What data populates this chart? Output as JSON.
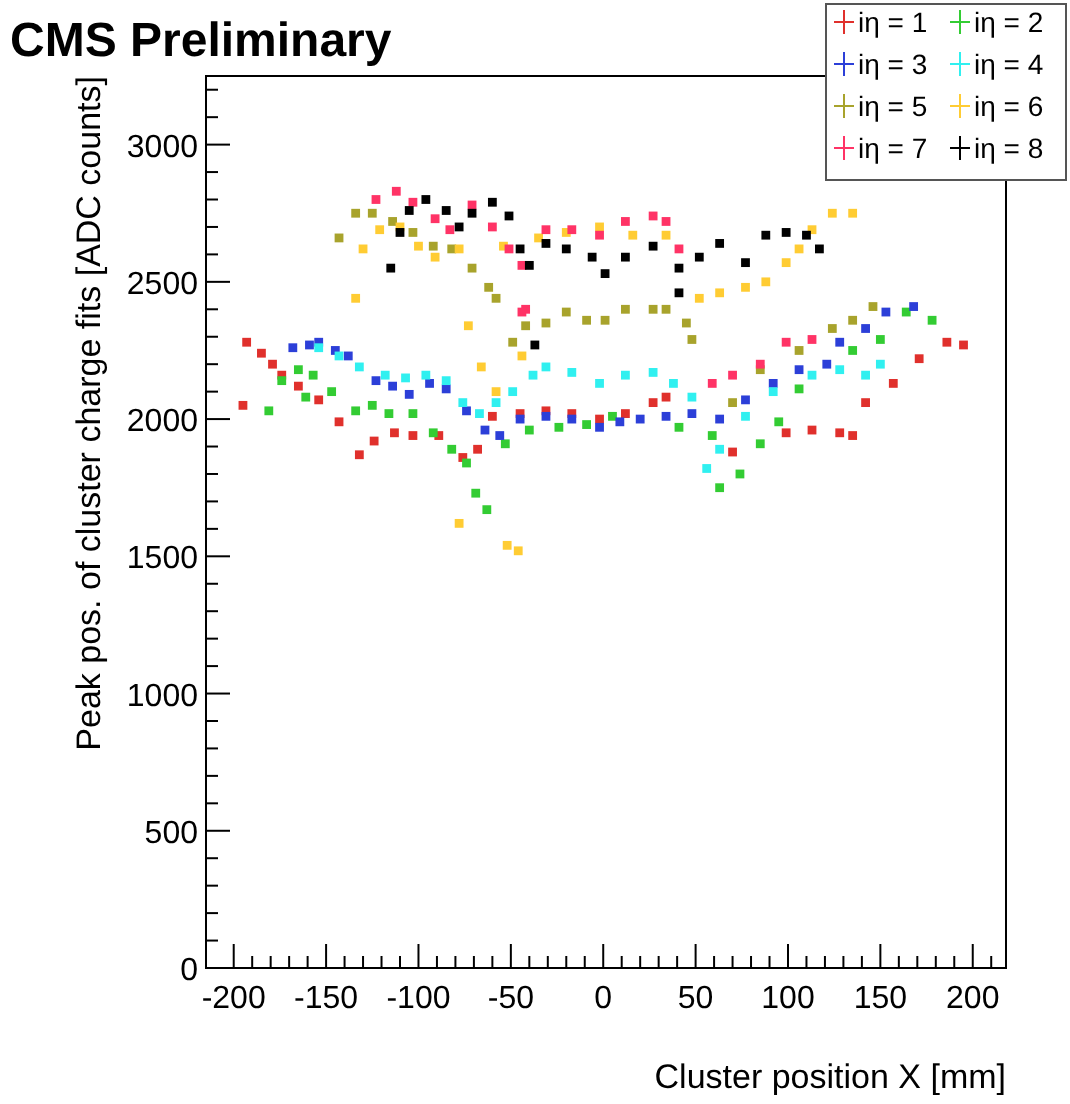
{
  "chart_data": {
    "type": "scatter",
    "title": "CMS Preliminary",
    "xlabel": "Cluster position X [mm]",
    "ylabel": "Peak pos. of cluster charge fits [ADC counts]",
    "xlim": [
      -215,
      218
    ],
    "ylim": [
      0,
      3250
    ],
    "marker": "square",
    "legend": "top right",
    "grid": false,
    "xticks": [
      -200,
      {
        "value": -190,
        "label": null
      },
      {
        "value": -180,
        "label": null
      },
      {
        "value": -170,
        "label": null
      },
      {
        "value": -160,
        "label": null
      },
      -150,
      {
        "value": -140,
        "label": null
      },
      {
        "value": -130,
        "label": null
      },
      {
        "value": -120,
        "label": null
      },
      {
        "value": -110,
        "label": null
      },
      -100,
      {
        "value": -90,
        "label": null
      },
      {
        "value": -80,
        "label": null
      },
      {
        "value": -70,
        "label": null
      },
      {
        "value": -60,
        "label": null
      },
      -50,
      {
        "value": -40,
        "label": null
      },
      {
        "value": -30,
        "label": null
      },
      {
        "value": -20,
        "label": null
      },
      {
        "value": -10,
        "label": null
      },
      0,
      {
        "value": 10,
        "label": null
      },
      {
        "value": 20,
        "label": null
      },
      {
        "value": 30,
        "label": null
      },
      {
        "value": 40,
        "label": null
      },
      50,
      {
        "value": 60,
        "label": null
      },
      {
        "value": 70,
        "label": null
      },
      {
        "value": 80,
        "label": null
      },
      {
        "value": 90,
        "label": null
      },
      100,
      {
        "value": 110,
        "label": null
      },
      {
        "value": 120,
        "label": null
      },
      {
        "value": 130,
        "label": null
      },
      {
        "value": 140,
        "label": null
      },
      150,
      {
        "value": 160,
        "label": null
      },
      {
        "value": 170,
        "label": null
      },
      {
        "value": 180,
        "label": null
      },
      {
        "value": 190,
        "label": null
      },
      200,
      {
        "value": 210,
        "label": null
      }
    ],
    "yticks": [
      0,
      {
        "value": 100,
        "label": null
      },
      {
        "value": 200,
        "label": null
      },
      {
        "value": 300,
        "label": null
      },
      {
        "value": 400,
        "label": null
      },
      500,
      {
        "value": 600,
        "label": null
      },
      {
        "value": 700,
        "label": null
      },
      {
        "value": 800,
        "label": null
      },
      {
        "value": 900,
        "label": null
      },
      1000,
      {
        "value": 1100,
        "label": null
      },
      {
        "value": 1200,
        "label": null
      },
      {
        "value": 1300,
        "label": null
      },
      {
        "value": 1400,
        "label": null
      },
      1500,
      {
        "value": 1600,
        "label": null
      },
      {
        "value": 1700,
        "label": null
      },
      {
        "value": 1800,
        "label": null
      },
      {
        "value": 1900,
        "label": null
      },
      2000,
      {
        "value": 2100,
        "label": null
      },
      {
        "value": 2200,
        "label": null
      },
      {
        "value": 2300,
        "label": null
      },
      {
        "value": 2400,
        "label": null
      },
      2500,
      {
        "value": 2600,
        "label": null
      },
      {
        "value": 2700,
        "label": null
      },
      {
        "value": 2800,
        "label": null
      },
      {
        "value": 2900,
        "label": null
      },
      3000,
      {
        "value": 3100,
        "label": null
      },
      {
        "value": 3200,
        "label": null
      }
    ],
    "series": [
      {
        "name": "iη = 1",
        "color": "#e0302c",
        "x": [
          -195,
          -193,
          -185,
          -179,
          -174,
          -165,
          -154,
          -143,
          -132,
          -124,
          -113,
          -103,
          -89,
          -76,
          -68,
          -60,
          -45,
          -31,
          -17,
          -2,
          12,
          27,
          34,
          70,
          99,
          113,
          128,
          135,
          142,
          157,
          171,
          186,
          195
        ],
        "values": [
          2050,
          2280,
          2240,
          2200,
          2160,
          2120,
          2070,
          1990,
          1870,
          1920,
          1950,
          1940,
          1940,
          1860,
          1890,
          2010,
          2020,
          2030,
          2020,
          2000,
          2020,
          2060,
          2080,
          1880,
          1950,
          1960,
          1950,
          1940,
          2060,
          2130,
          2220,
          2280,
          2270
        ]
      },
      {
        "name": "iη = 2",
        "color": "#33cc33",
        "x": [
          -181,
          -174,
          -165,
          -157,
          -161,
          -147,
          -134,
          -125,
          -116,
          -103,
          -92,
          -82,
          -74,
          -69,
          -63,
          -53,
          -40,
          -24,
          -9,
          5,
          41,
          59,
          63,
          74,
          85,
          95,
          106,
          135,
          150,
          164,
          178
        ],
        "values": [
          2030,
          2140,
          2180,
          2160,
          2080,
          2100,
          2030,
          2050,
          2020,
          2020,
          1950,
          1890,
          1840,
          1730,
          1670,
          1910,
          1960,
          1970,
          1980,
          2010,
          1970,
          1940,
          1750,
          1800,
          1910,
          1990,
          2110,
          2250,
          2290,
          2390,
          2360
        ]
      },
      {
        "name": "iη = 3",
        "color": "#2c3fd8",
        "x": [
          -168,
          -159,
          -154,
          -145,
          -138,
          -123,
          -114,
          -105,
          -94,
          -85,
          -74,
          -64,
          -56,
          -45,
          -31,
          -17,
          -2,
          9,
          20,
          34,
          48,
          63,
          77,
          92,
          106,
          121,
          128,
          142,
          153,
          168
        ],
        "values": [
          2260,
          2270,
          2280,
          2250,
          2230,
          2140,
          2120,
          2090,
          2130,
          2110,
          2030,
          1960,
          1940,
          2000,
          2010,
          2000,
          1970,
          1990,
          2000,
          2010,
          2020,
          2000,
          2070,
          2130,
          2180,
          2200,
          2280,
          2330,
          2390,
          2410
        ]
      },
      {
        "name": "iη = 4",
        "color": "#30f0f0",
        "x": [
          -154,
          -143,
          -132,
          -118,
          -107,
          -96,
          -85,
          -76,
          -67,
          -58,
          -49,
          -38,
          -31,
          -17,
          -2,
          12,
          27,
          38,
          48,
          56,
          63,
          77,
          92,
          113,
          128,
          142,
          150
        ],
        "values": [
          2260,
          2230,
          2190,
          2160,
          2150,
          2160,
          2140,
          2060,
          2020,
          2060,
          2100,
          2160,
          2190,
          2170,
          2130,
          2160,
          2170,
          2130,
          2080,
          1820,
          1890,
          2010,
          2100,
          2160,
          2180,
          2160,
          2200
        ]
      },
      {
        "name": "iη = 5",
        "color": "#a8a32c",
        "x": [
          -143,
          -134,
          -125,
          -114,
          -103,
          -92,
          -82,
          -71,
          -62,
          -58,
          -49,
          -42,
          -31,
          -20,
          -9,
          1,
          12,
          27,
          34,
          45,
          48,
          70,
          85,
          106,
          124,
          135,
          146
        ],
        "values": [
          2660,
          2750,
          2750,
          2720,
          2680,
          2630,
          2620,
          2550,
          2480,
          2440,
          2280,
          2340,
          2350,
          2390,
          2360,
          2360,
          2400,
          2400,
          2400,
          2350,
          2290,
          2060,
          2180,
          2250,
          2330,
          2360,
          2410
        ]
      },
      {
        "name": "iη = 6",
        "color": "#ffcc33",
        "x": [
          -134,
          -130,
          -121,
          -110,
          -100,
          -91,
          -78,
          -73,
          -66,
          -58,
          -78,
          -52,
          -46,
          -54,
          -44,
          -35,
          -20,
          -2,
          16,
          34,
          52,
          63,
          77,
          88,
          99,
          106,
          113,
          124,
          135
        ],
        "values": [
          2440,
          2620,
          2690,
          2700,
          2630,
          2590,
          2620,
          2340,
          2190,
          2100,
          1620,
          1540,
          1520,
          2630,
          2230,
          2660,
          2680,
          2700,
          2670,
          2670,
          2440,
          2460,
          2480,
          2500,
          2570,
          2620,
          2690,
          2750,
          2750
        ]
      },
      {
        "name": "iη = 7",
        "color": "#ff3366",
        "x": [
          -123,
          -112,
          -103,
          -91,
          -83,
          -71,
          -60,
          -51,
          -44,
          -42,
          -44,
          -31,
          -17,
          -2,
          12,
          27,
          34,
          41,
          59,
          70,
          85,
          99,
          113
        ],
        "values": [
          2800,
          2830,
          2790,
          2730,
          2690,
          2780,
          2700,
          2620,
          2560,
          2400,
          2390,
          2690,
          2690,
          2670,
          2720,
          2740,
          2720,
          2620,
          2130,
          2160,
          2200,
          2280,
          2290
        ]
      },
      {
        "name": "iη = 8",
        "color": "#000000",
        "x": [
          -115,
          -110,
          -105,
          -96,
          -85,
          -78,
          -71,
          -60,
          -51,
          -45,
          -40,
          -37,
          -31,
          -20,
          -6,
          1,
          12,
          27,
          41,
          41,
          52,
          63,
          77,
          88,
          99,
          110,
          117
        ],
        "values": [
          2550,
          2680,
          2760,
          2800,
          2760,
          2700,
          2750,
          2790,
          2740,
          2620,
          2560,
          2270,
          2640,
          2620,
          2590,
          2530,
          2590,
          2630,
          2550,
          2460,
          2590,
          2640,
          2570,
          2670,
          2680,
          2670,
          2620
        ]
      }
    ]
  }
}
